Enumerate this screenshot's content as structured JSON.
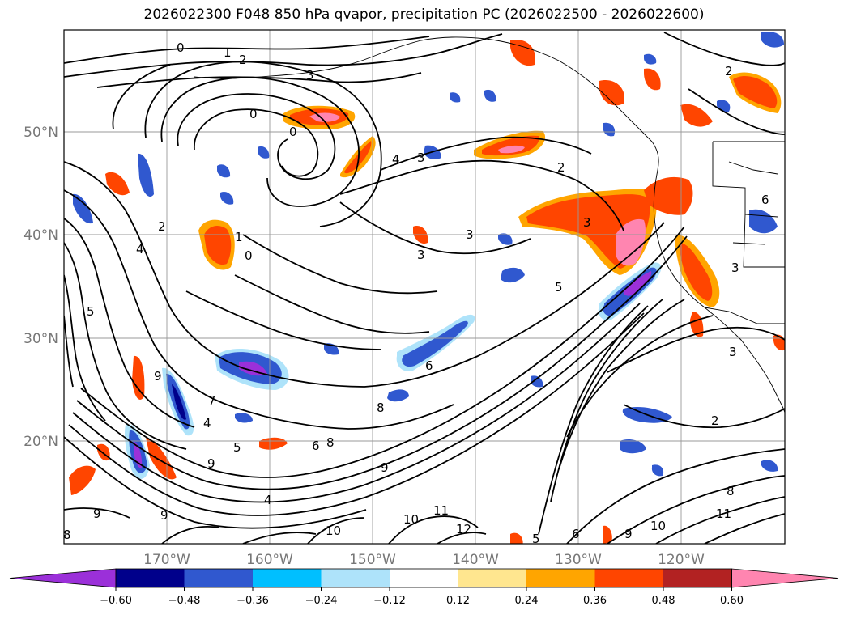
{
  "title": "2026022300 F048 850 hPa qvapor, precipitation PC (2026022500 - 2026022600)",
  "latitude_labels": [
    "50°N",
    "40°N",
    "30°N",
    "20°N"
  ],
  "longitude_labels": [
    "170°W",
    "160°W",
    "150°W",
    "140°W",
    "130°W",
    "120°W"
  ],
  "colorbar": {
    "ticks": [
      "−0.60",
      "−0.48",
      "−0.36",
      "−0.24",
      "−0.12",
      "0.12",
      "0.24",
      "0.36",
      "0.48",
      "0.60"
    ],
    "colors": [
      "#9b30d9",
      "#00008b",
      "#3058cf",
      "#00bfff",
      "#aee3fa",
      "#ffffff",
      "#ffe68f",
      "#ffa500",
      "#ff4500",
      "#b22222",
      "#ff85b0"
    ]
  },
  "contour_labels": {
    "c0a": "0",
    "c1a": "1",
    "c2a": "2",
    "c3a": "3",
    "c0b": "0",
    "c0c": "0",
    "c4a": "4",
    "c3b": "3",
    "c2b": "2",
    "c1b": "1",
    "c0d": "0",
    "c3c": "3",
    "c3d": "3",
    "c5a": "5",
    "c6a": "6",
    "c7a": "7",
    "c4b": "4",
    "c5b": "5",
    "c9a": "9",
    "c9b": "9",
    "c8a": "8",
    "c6b": "6",
    "c8b": "8",
    "c9c": "9",
    "c4c": "4",
    "c9d": "9",
    "c9e": "9",
    "c10a": "10",
    "c10b": "10",
    "c11a": "11",
    "c12a": "12",
    "c5c": "5",
    "c6c": "6",
    "c9f": "9",
    "c10c": "10",
    "c11b": "11",
    "c8c": "8",
    "c2c": "2",
    "c2d": "2",
    "c3e": "3",
    "c3f": "3",
    "c4d": "4",
    "c2e": "2",
    "c6d": "6",
    "c3g": "3",
    "c5d": "5",
    "c8d": "8"
  }
}
